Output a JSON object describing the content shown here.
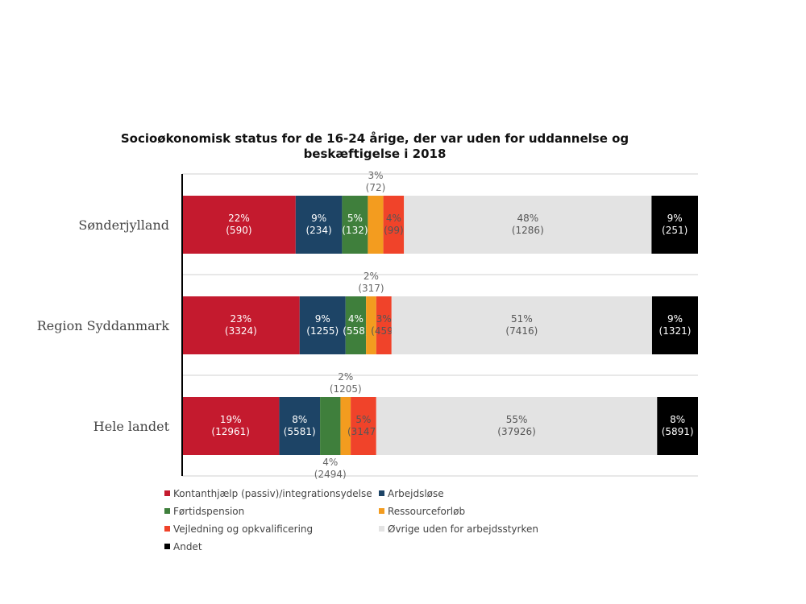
{
  "chart_data": {
    "type": "bar",
    "orientation": "horizontal",
    "stacked": true,
    "title_lines": [
      "Socioøkonomisk status for de 16-24 årige, der var uden for uddannelse og",
      "beskæftigelse i 2018"
    ],
    "categories": [
      "Sønderjylland",
      "Region Syddanmark",
      "Hele landet"
    ],
    "xlim": [
      0,
      100
    ],
    "grid": true,
    "legend_position": "bottom",
    "series": [
      {
        "name": "Kontanthjælp (passiv)/integrationsydelse",
        "color": "#c41a2e",
        "values": [
          22,
          23,
          19
        ],
        "labels": [
          [
            "22%",
            "(590)"
          ],
          [
            "23%",
            "(3324)"
          ],
          [
            "19%",
            "(12961)"
          ]
        ]
      },
      {
        "name": "Arbejdsløse",
        "color": "#1d4466",
        "values": [
          9,
          9,
          8
        ],
        "labels": [
          [
            "9%",
            "(234)"
          ],
          [
            "9%",
            "(1255)"
          ],
          [
            "8%",
            "(5581)"
          ]
        ]
      },
      {
        "name": "Førtidspension",
        "color": "#3f7f3c",
        "values": [
          5,
          4,
          4
        ],
        "labels": [
          [
            "5%",
            "(132)"
          ],
          [
            "4%",
            "(558)"
          ],
          [
            "4%",
            "(2494)"
          ]
        ]
      },
      {
        "name": "Ressourceforløb",
        "color": "#f39c1f",
        "values": [
          3,
          2,
          2
        ],
        "labels": [
          [
            "3%",
            "(72)"
          ],
          [
            "2%",
            "(317)"
          ],
          [
            "2%",
            "(1205)"
          ]
        ]
      },
      {
        "name": "Vejledning og opkvalificering",
        "color": "#f0432a",
        "values": [
          4,
          3,
          5
        ],
        "labels": [
          [
            "4%",
            "(99)"
          ],
          [
            "3%",
            "(459)"
          ],
          [
            "5%",
            "(3147)"
          ]
        ]
      },
      {
        "name": "Øvrige uden for arbejdsstyrken",
        "color": "#e3e3e3",
        "values": [
          48,
          51,
          55
        ],
        "labels": [
          [
            "48%",
            "(1286)"
          ],
          [
            "51%",
            "(7416)"
          ],
          [
            "55%",
            "(37926)"
          ]
        ]
      },
      {
        "name": "Andet",
        "color": "#000000",
        "values": [
          9,
          9,
          8
        ],
        "labels": [
          [
            "9%",
            "(251)"
          ],
          [
            "9%",
            "(1321)"
          ],
          [
            "8%",
            "(5891)"
          ]
        ]
      }
    ],
    "label_styles": {
      "inside_light": "#ffffff",
      "inside_dark": "#555555",
      "outside": "#666666"
    }
  }
}
